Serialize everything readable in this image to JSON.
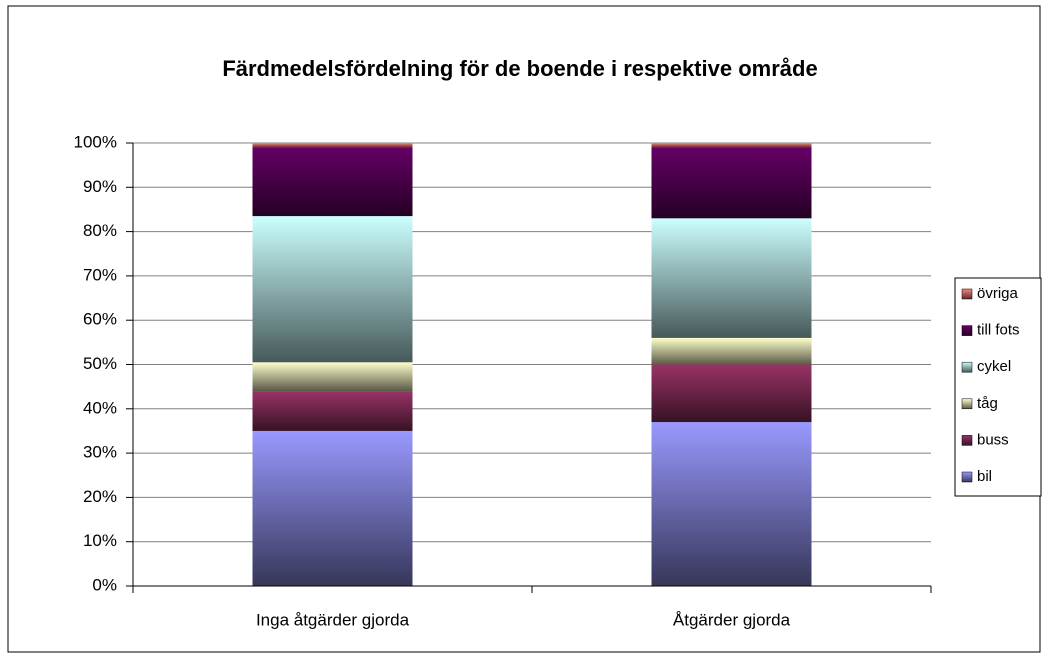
{
  "chart_data": {
    "type": "stacked-bar",
    "title": "Färdmedelsfördelning för de boende i respektive område",
    "categories": [
      "Inga åtgärder gjorda",
      "Åtgärder gjorda"
    ],
    "series": [
      {
        "name": "bil",
        "color": "#9999ff",
        "values": [
          35,
          37
        ]
      },
      {
        "name": "buss",
        "color": "#993366",
        "values": [
          9,
          13
        ]
      },
      {
        "name": "tåg",
        "color": "#ffffcc",
        "values": [
          6.5,
          6
        ]
      },
      {
        "name": "cykel",
        "color": "#ccffff",
        "values": [
          33,
          27
        ]
      },
      {
        "name": "till fots",
        "color": "#660066",
        "values": [
          15.5,
          16
        ]
      },
      {
        "name": "övriga",
        "color": "#ff8080",
        "values": [
          1,
          1
        ]
      }
    ],
    "ylim": [
      0,
      100
    ],
    "yticks": [
      {
        "value": 0,
        "label": "0%"
      },
      {
        "value": 10,
        "label": "10%"
      },
      {
        "value": 20,
        "label": "20%"
      },
      {
        "value": 30,
        "label": "30%"
      },
      {
        "value": 40,
        "label": "40%"
      },
      {
        "value": 50,
        "label": "50%"
      },
      {
        "value": 60,
        "label": "60%"
      },
      {
        "value": 70,
        "label": "70%"
      },
      {
        "value": 80,
        "label": "80%"
      },
      {
        "value": 90,
        "label": "90%"
      },
      {
        "value": 100,
        "label": "100%"
      }
    ],
    "grid": true,
    "legend": "right"
  }
}
